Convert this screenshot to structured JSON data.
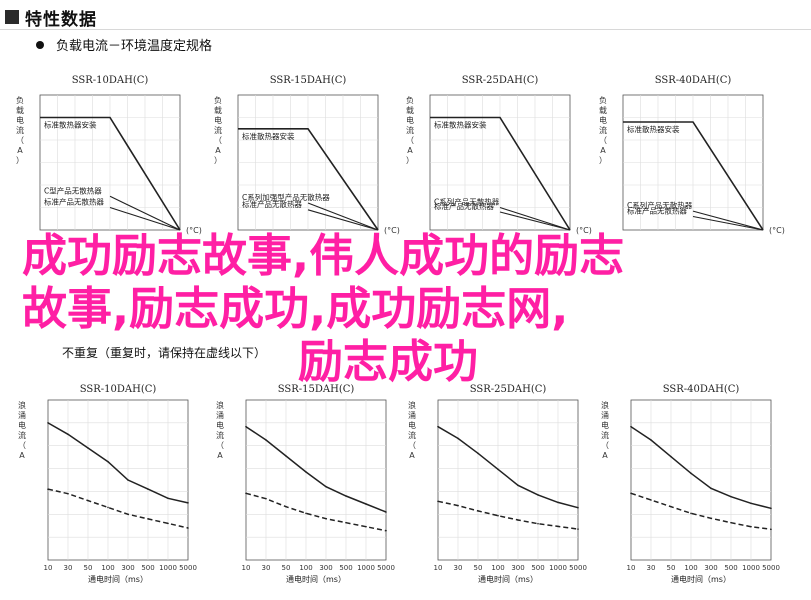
{
  "header": {
    "title": "特性数据",
    "icon": "square-icon"
  },
  "section1": {
    "label": "负载电流－环境温度定规格"
  },
  "section2": {
    "label": "不重复（重复时，请保持在虚线以下）"
  },
  "overlay": {
    "line1": "成功励志故事,伟人成功的励志",
    "line2": "故事,励志成功,成功励志网,",
    "line3": "励志成功",
    "color": "#ff1fa4"
  },
  "chart_data": [
    {
      "group": "load_current_vs_temperature",
      "type": "line",
      "title": "SSR-10DAH(C)",
      "ylabel": "负载电流（A）",
      "xlabel": "(°C)",
      "series": [
        {
          "name": "标准散热器安装",
          "points": [
            [
              0,
              10
            ],
            [
              40,
              10
            ],
            [
              80,
              0
            ]
          ]
        },
        {
          "name": "C型产品无散热器",
          "points": [
            [
              40,
              3
            ],
            [
              80,
              0
            ]
          ]
        },
        {
          "name": "标准产品无散热器",
          "points": [
            [
              40,
              2
            ],
            [
              80,
              0
            ]
          ]
        }
      ],
      "ylim": [
        0,
        12
      ],
      "xlim": [
        0,
        80
      ]
    },
    {
      "group": "load_current_vs_temperature",
      "type": "line",
      "title": "SSR-15DAH(C)",
      "ylabel": "负载电流（A）",
      "xlabel": "(°C)",
      "series": [
        {
          "name": "标准散热器安装",
          "points": [
            [
              0,
              15
            ],
            [
              40,
              15
            ],
            [
              80,
              0
            ]
          ]
        },
        {
          "name": "C系列加强型产品无散热器",
          "points": [
            [
              40,
              4
            ],
            [
              80,
              0
            ]
          ]
        },
        {
          "name": "标准产品无散热器",
          "points": [
            [
              40,
              3
            ],
            [
              80,
              0
            ]
          ]
        }
      ],
      "ylim": [
        0,
        20
      ],
      "xlim": [
        0,
        80
      ]
    },
    {
      "group": "load_current_vs_temperature",
      "type": "line",
      "title": "SSR-25DAH(C)",
      "ylabel": "负载电流（A）",
      "xlabel": "(°C)",
      "series": [
        {
          "name": "标准散热器安装",
          "points": [
            [
              0,
              25
            ],
            [
              40,
              25
            ],
            [
              80,
              0
            ]
          ]
        },
        {
          "name": "C系列产品无散热器",
          "points": [
            [
              40,
              5
            ],
            [
              80,
              0
            ]
          ]
        },
        {
          "name": "标准产品无散热器",
          "points": [
            [
              40,
              4
            ],
            [
              80,
              0
            ]
          ]
        }
      ],
      "ylim": [
        0,
        30
      ],
      "xlim": [
        0,
        80
      ]
    },
    {
      "group": "load_current_vs_temperature",
      "type": "line",
      "title": "SSR-40DAH(C)",
      "ylabel": "负载电流（A）",
      "xlabel": "(°C)",
      "series": [
        {
          "name": "标准散热器安装",
          "points": [
            [
              0,
              40
            ],
            [
              40,
              40
            ],
            [
              80,
              0
            ]
          ]
        },
        {
          "name": "C系列产品无散热器",
          "points": [
            [
              40,
              7
            ],
            [
              80,
              0
            ]
          ]
        },
        {
          "name": "标准产品无散热器",
          "points": [
            [
              40,
              5
            ],
            [
              80,
              0
            ]
          ]
        }
      ],
      "ylim": [
        0,
        50
      ],
      "xlim": [
        0,
        80
      ]
    },
    {
      "group": "surge_current",
      "type": "line",
      "title": "SSR-10DAH(C)",
      "ylabel": "浪涌电流（A Peak）",
      "xlabel": "通电时间（ms）",
      "xticks": [
        "10",
        "30",
        "50",
        "100",
        "300",
        "500",
        "1000",
        "5000"
      ],
      "series": [
        {
          "name": "solid",
          "values": [
            60,
            55,
            49,
            43,
            35,
            31,
            27,
            25
          ]
        },
        {
          "name": "dashed",
          "values": [
            31,
            29,
            26,
            23,
            20,
            18,
            16,
            14
          ]
        }
      ],
      "ylim": [
        0,
        70
      ]
    },
    {
      "group": "surge_current",
      "type": "line",
      "title": "SSR-15DAH(C)",
      "ylabel": "浪涌电流（A Peak）",
      "xlabel": "通电时间（ms）",
      "xticks": [
        "10",
        "30",
        "50",
        "100",
        "300",
        "500",
        "1000",
        "5000"
      ],
      "series": [
        {
          "name": "solid",
          "values": [
            100,
            90,
            78,
            66,
            55,
            48,
            42,
            36
          ]
        },
        {
          "name": "dashed",
          "values": [
            50,
            46,
            40,
            35,
            31,
            28,
            25,
            22
          ]
        }
      ],
      "ylim": [
        0,
        120
      ]
    },
    {
      "group": "surge_current",
      "type": "line",
      "title": "SSR-25DAH(C)",
      "ylabel": "浪涌电流（A Peak）",
      "xlabel": "通电时间（ms）",
      "xticks": [
        "10",
        "30",
        "50",
        "100",
        "300",
        "500",
        "1000",
        "5000"
      ],
      "series": [
        {
          "name": "solid",
          "values": [
            250,
            228,
            200,
            170,
            140,
            122,
            108,
            98
          ]
        },
        {
          "name": "dashed",
          "values": [
            110,
            102,
            92,
            83,
            75,
            68,
            63,
            58
          ]
        }
      ],
      "ylim": [
        0,
        300
      ]
    },
    {
      "group": "surge_current",
      "type": "line",
      "title": "SSR-40DAH(C)",
      "ylabel": "浪涌电流（A Peak）",
      "xlabel": "通电时间（ms）",
      "xticks": [
        "10",
        "30",
        "50",
        "100",
        "300",
        "500",
        "1000",
        "5000"
      ],
      "series": [
        {
          "name": "solid",
          "values": [
            400,
            360,
            310,
            260,
            215,
            190,
            170,
            155
          ]
        },
        {
          "name": "dashed",
          "values": [
            200,
            180,
            160,
            140,
            125,
            112,
            100,
            92
          ]
        }
      ],
      "ylim": [
        0,
        480
      ]
    }
  ]
}
